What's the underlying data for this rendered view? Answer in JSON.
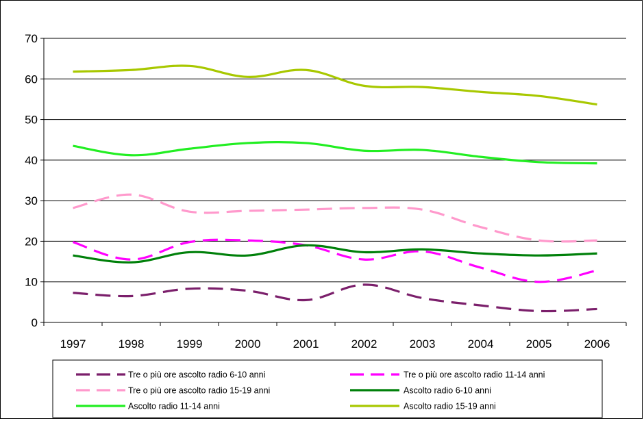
{
  "chart_data": {
    "type": "line",
    "title": "",
    "xlabel": "",
    "ylabel": "",
    "categories": [
      "1997",
      "1998",
      "1999",
      "2000",
      "2001",
      "2002",
      "2003",
      "2004",
      "2005",
      "2006"
    ],
    "ylim": [
      0,
      70
    ],
    "yticks": [
      "0",
      "10",
      "20",
      "30",
      "40",
      "50",
      "60",
      "70"
    ],
    "grid": true,
    "legend_position": "bottom",
    "series": [
      {
        "name": "Tre o più ore ascolto radio 6-10 anni",
        "color": "#7B1F6B",
        "dash": true,
        "values": [
          7.3,
          6.5,
          8.3,
          7.8,
          5.5,
          9.3,
          6.0,
          4.2,
          2.8,
          3.3
        ]
      },
      {
        "name": "Tre o più ore ascolto radio 11-14 anni",
        "color": "#FF00FF",
        "dash": true,
        "values": [
          19.8,
          15.5,
          19.8,
          20.2,
          19.0,
          15.5,
          17.5,
          13.5,
          10.0,
          12.8
        ]
      },
      {
        "name": "Tre o più ore ascolto radio 15-19 anni",
        "color": "#FF99CC",
        "dash": true,
        "values": [
          28.2,
          31.5,
          27.3,
          27.5,
          27.8,
          28.2,
          27.8,
          23.5,
          20.2,
          20.2
        ]
      },
      {
        "name": "Ascolto radio 6-10 anni",
        "color": "#00800A",
        "dash": false,
        "values": [
          16.5,
          14.8,
          17.3,
          16.5,
          19.0,
          17.3,
          18.0,
          17.0,
          16.5,
          17.0
        ]
      },
      {
        "name": "Ascolto radio 11-14 anni",
        "color": "#22EE22",
        "dash": false,
        "values": [
          43.5,
          41.2,
          42.8,
          44.2,
          44.2,
          42.3,
          42.5,
          40.8,
          39.5,
          39.2
        ]
      },
      {
        "name": "Ascolto radio 15-19 anni",
        "color": "#A8C800",
        "dash": false,
        "values": [
          61.8,
          62.2,
          63.2,
          60.5,
          62.2,
          58.3,
          58.0,
          56.8,
          55.8,
          53.7
        ]
      }
    ]
  }
}
